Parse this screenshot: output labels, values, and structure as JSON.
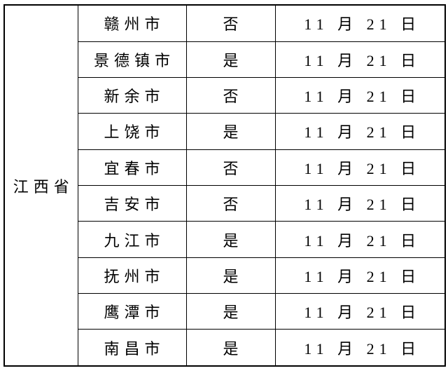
{
  "table": {
    "province": "江西省",
    "rows": [
      {
        "city": "赣州市",
        "answer": "否",
        "date": "11 月 21 日"
      },
      {
        "city": "景德镇市",
        "answer": "是",
        "date": "11 月 21 日"
      },
      {
        "city": "新余市",
        "answer": "否",
        "date": "11 月 21 日"
      },
      {
        "city": "上饶市",
        "answer": "是",
        "date": "11 月 21 日"
      },
      {
        "city": "宜春市",
        "answer": "否",
        "date": "11 月 21 日"
      },
      {
        "city": "吉安市",
        "answer": "否",
        "date": "11 月 21 日"
      },
      {
        "city": "九江市",
        "answer": "是",
        "date": "11 月 21 日"
      },
      {
        "city": "抚州市",
        "answer": "是",
        "date": "11 月 21 日"
      },
      {
        "city": "鹰潭市",
        "answer": "是",
        "date": "11 月 21 日"
      },
      {
        "city": "南昌市",
        "answer": "是",
        "date": "11 月 21 日"
      }
    ],
    "colors": {
      "border": "#000000",
      "background": "#ffffff",
      "text": "#000000"
    }
  }
}
